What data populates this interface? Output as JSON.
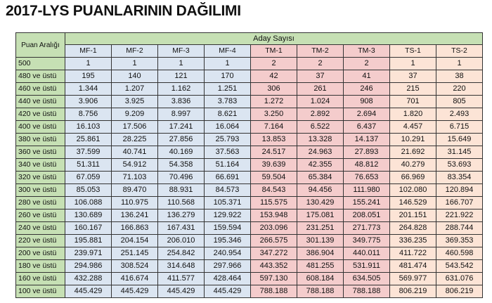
{
  "title": "2017-LYS PUANLARININ DAĞILIMI",
  "header": {
    "puan_araligi": "Puan Aralığı",
    "aday_sayisi": "Aday Sayısı",
    "columns": [
      "MF-1",
      "MF-2",
      "MF-3",
      "MF-4",
      "TM-1",
      "TM-2",
      "TM-3",
      "TS-1",
      "TS-2"
    ]
  },
  "colors": {
    "label_green": "#c6e0b4",
    "mf_blue": "#dbe5f1",
    "tm_pink": "#f4cccc",
    "ts_peach": "#fce4d6"
  },
  "rows": [
    {
      "label": "500",
      "values": [
        "1",
        "1",
        "1",
        "1",
        "2",
        "2",
        "2",
        "1",
        "1"
      ]
    },
    {
      "label": "480 ve üstü",
      "values": [
        "195",
        "140",
        "121",
        "170",
        "42",
        "37",
        "41",
        "37",
        "38"
      ]
    },
    {
      "label": "460 ve üstü",
      "values": [
        "1.344",
        "1.207",
        "1.162",
        "1.251",
        "306",
        "261",
        "246",
        "215",
        "220"
      ]
    },
    {
      "label": "440 ve üstü",
      "values": [
        "3.906",
        "3.925",
        "3.836",
        "3.783",
        "1.272",
        "1.024",
        "908",
        "701",
        "805"
      ]
    },
    {
      "label": "420 ve üstü",
      "values": [
        "8.756",
        "9.209",
        "8.997",
        "8.621",
        "3.250",
        "2.892",
        "2.694",
        "1.820",
        "2.493"
      ]
    },
    {
      "label": "400 ve üstü",
      "values": [
        "16.103",
        "17.506",
        "17.241",
        "16.064",
        "7.164",
        "6.522",
        "6.437",
        "4.457",
        "6.715"
      ]
    },
    {
      "label": "380 ve üstü",
      "values": [
        "25.861",
        "28.225",
        "27.856",
        "25.793",
        "13.853",
        "13.328",
        "14.137",
        "10.291",
        "15.649"
      ]
    },
    {
      "label": "360 ve üstü",
      "values": [
        "37.599",
        "40.741",
        "40.169",
        "37.563",
        "24.517",
        "24.963",
        "27.893",
        "21.692",
        "31.145"
      ]
    },
    {
      "label": "340 ve üstü",
      "values": [
        "51.311",
        "54.912",
        "54.358",
        "51.164",
        "39.639",
        "42.355",
        "48.812",
        "40.279",
        "53.693"
      ]
    },
    {
      "label": "320 ve üstü",
      "values": [
        "67.059",
        "71.103",
        "70.496",
        "66.691",
        "59.504",
        "65.384",
        "76.653",
        "66.969",
        "83.354"
      ]
    },
    {
      "label": "300 ve üstü",
      "values": [
        "85.053",
        "89.470",
        "88.931",
        "84.573",
        "84.543",
        "94.456",
        "111.980",
        "102.080",
        "120.894"
      ]
    },
    {
      "label": "280 ve üstü",
      "values": [
        "106.088",
        "110.975",
        "110.568",
        "105.371",
        "115.575",
        "130.429",
        "155.241",
        "146.529",
        "166.707"
      ]
    },
    {
      "label": "260 ve üstü",
      "values": [
        "130.689",
        "136.241",
        "136.279",
        "129.922",
        "153.948",
        "175.081",
        "208.051",
        "201.151",
        "221.922"
      ]
    },
    {
      "label": "240 ve üstü",
      "values": [
        "160.167",
        "166.863",
        "167.431",
        "159.594",
        "203.096",
        "231.251",
        "271.773",
        "264.828",
        "288.744"
      ]
    },
    {
      "label": "220 ve üstü",
      "values": [
        "195.881",
        "204.154",
        "206.010",
        "195.346",
        "266.575",
        "301.139",
        "349.775",
        "336.235",
        "369.353"
      ]
    },
    {
      "label": "200 ve üstü",
      "values": [
        "239.971",
        "251.145",
        "254.842",
        "240.954",
        "347.272",
        "386.904",
        "440.011",
        "411.722",
        "460.598"
      ]
    },
    {
      "label": "180 ve üstü",
      "values": [
        "294.986",
        "308.524",
        "314.648",
        "297.966",
        "443.352",
        "481.255",
        "531.911",
        "481.474",
        "543.542"
      ]
    },
    {
      "label": "160 ve üstü",
      "values": [
        "432.288",
        "416.674",
        "411.577",
        "428.464",
        "597.130",
        "608.184",
        "634.505",
        "569.977",
        "631.076"
      ]
    },
    {
      "label": "100 ve üstü",
      "values": [
        "445.429",
        "445.429",
        "445.429",
        "445.429",
        "788.188",
        "788.188",
        "788.188",
        "806.219",
        "806.219"
      ]
    }
  ]
}
